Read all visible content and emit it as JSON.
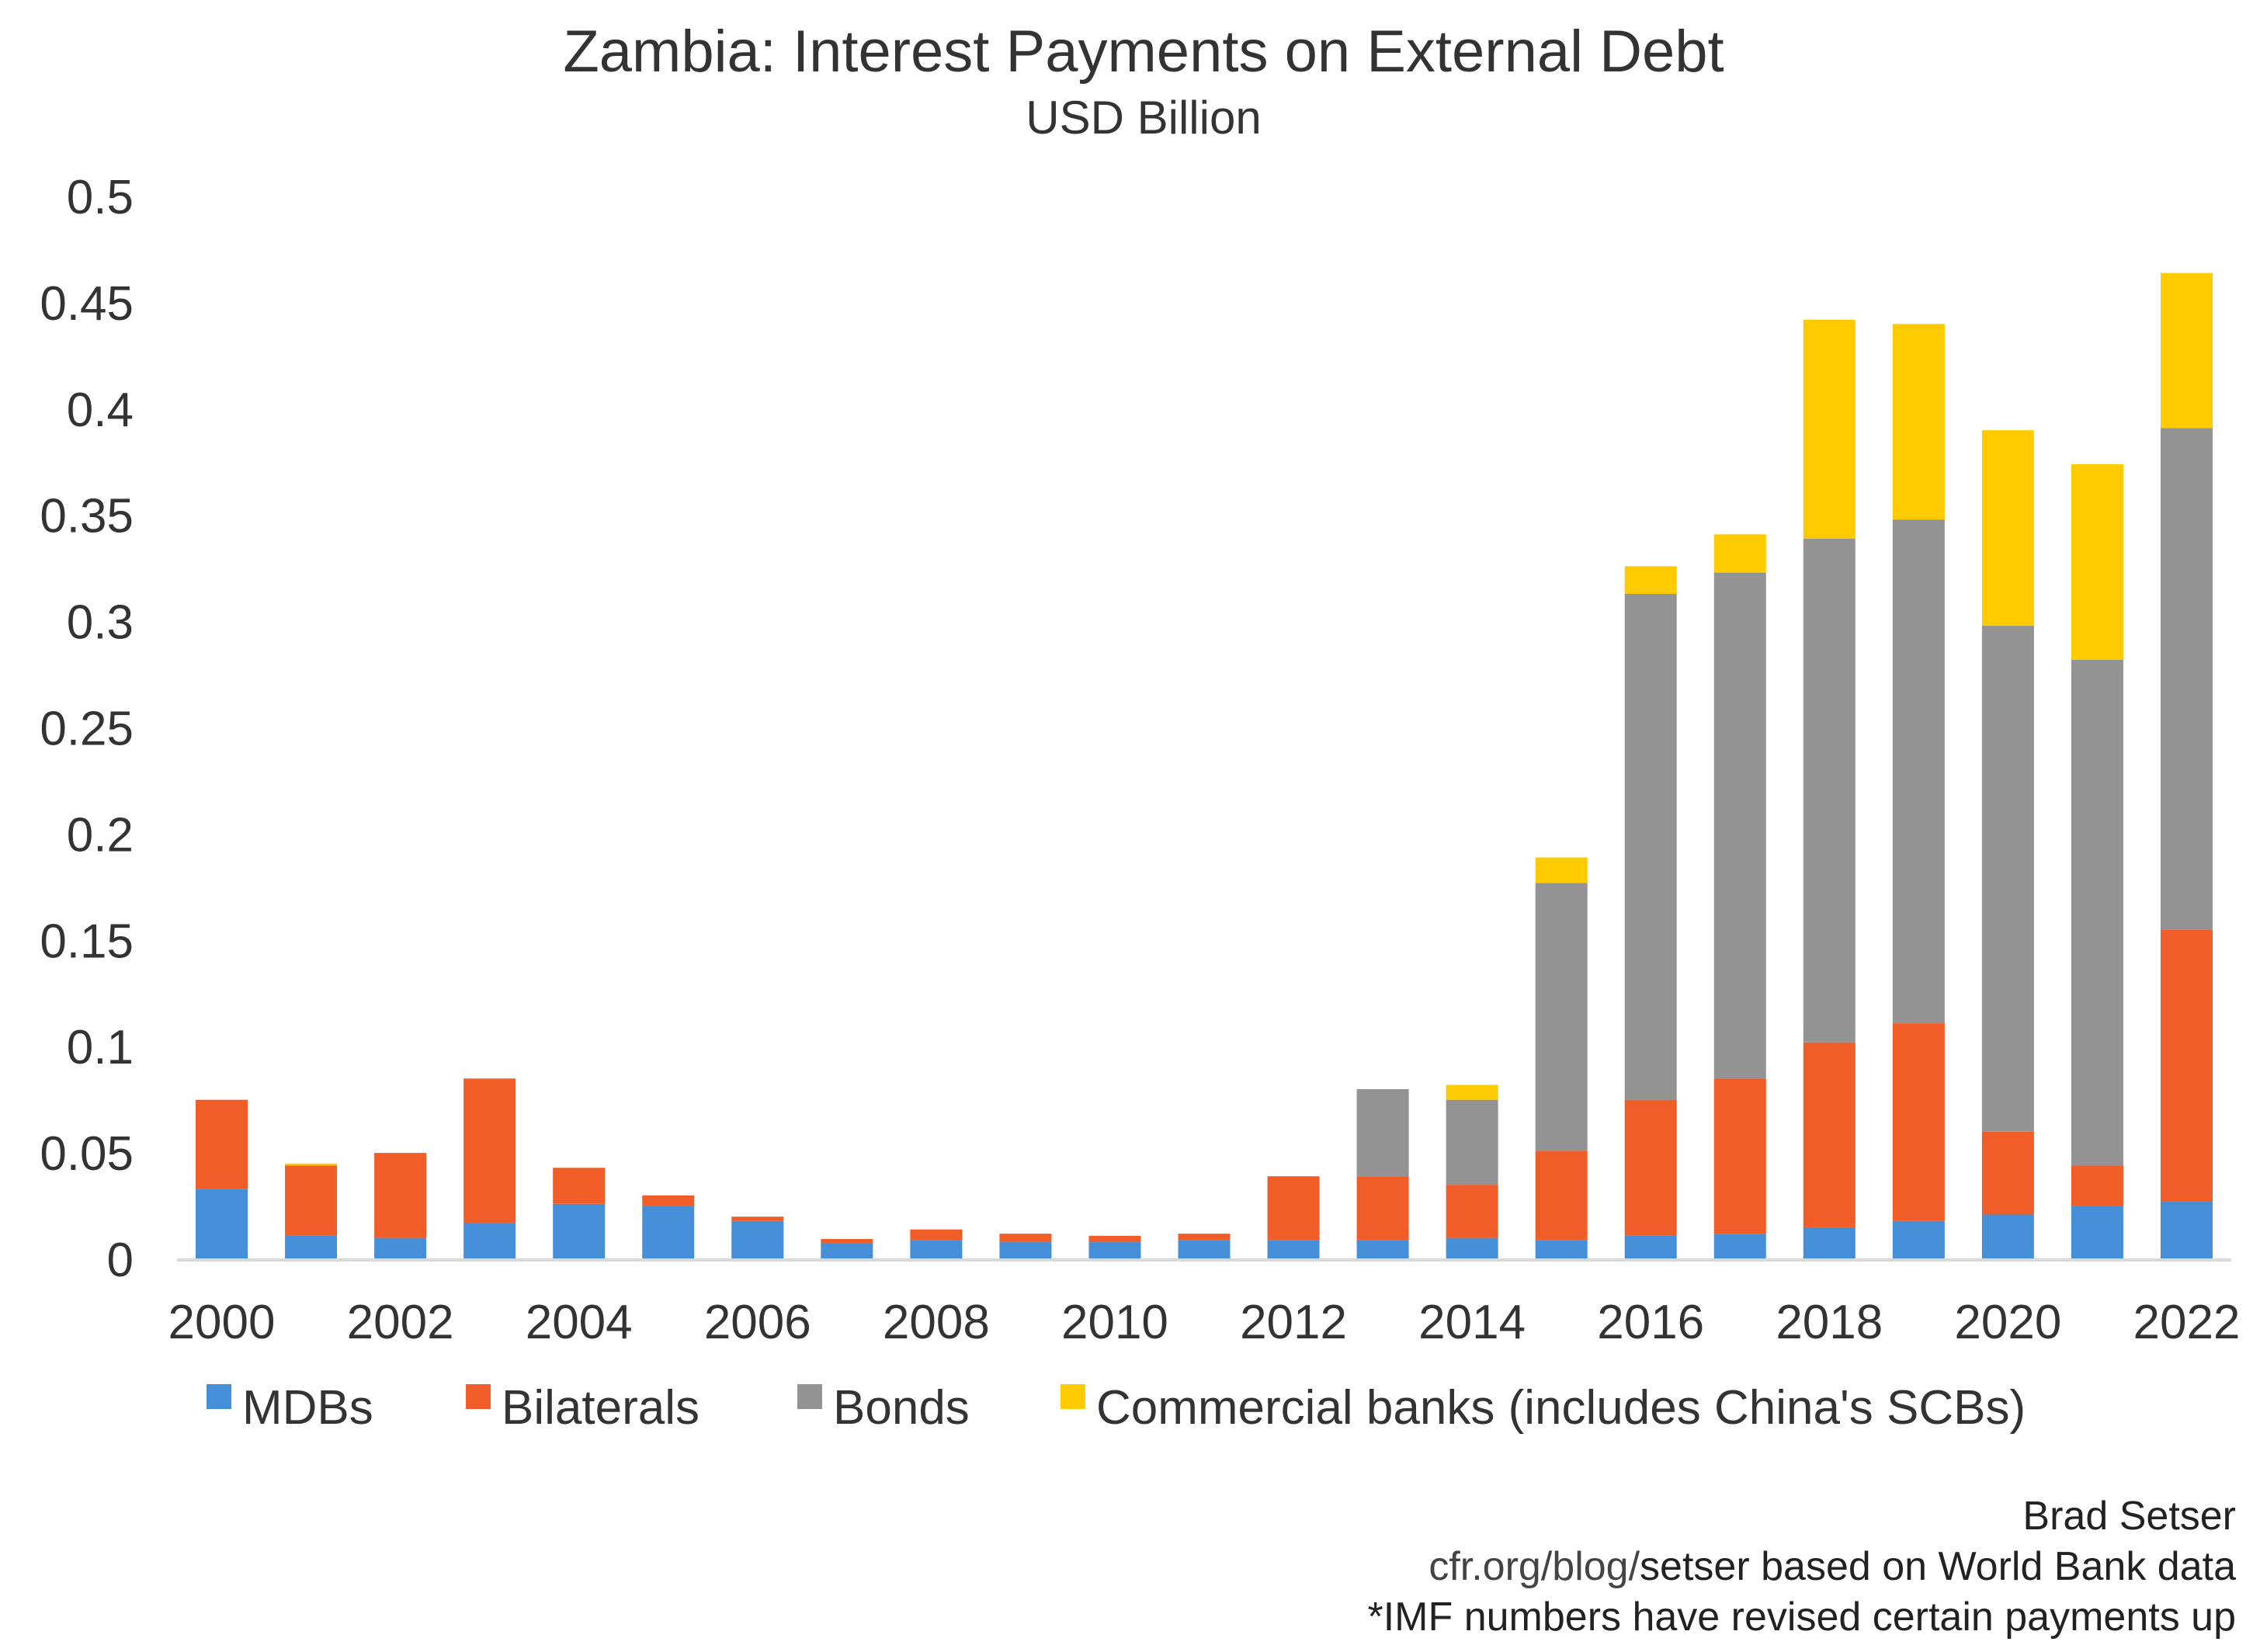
{
  "chart_data": {
    "type": "bar",
    "stacked": true,
    "title": "Zambia: Interest Payments on External Debt",
    "subtitle": "USD Billion",
    "xlabel": "",
    "ylabel": "",
    "ylim": [
      0,
      0.5
    ],
    "yticks": [
      "0",
      "0.05",
      "0.1",
      "0.15",
      "0.2",
      "0.25",
      "0.3",
      "0.35",
      "0.4",
      "0.45",
      "0.5"
    ],
    "grid": false,
    "legend_position": "bottom",
    "categories": [
      "2000",
      "2001",
      "2002",
      "2003",
      "2004",
      "2005",
      "2006",
      "2007",
      "2008",
      "2009",
      "2010",
      "2011",
      "2012",
      "2013",
      "2014",
      "2015",
      "2016",
      "2017",
      "2018",
      "2019",
      "2020",
      "2021",
      "2022"
    ],
    "xtick_labels": [
      "2000",
      "2002",
      "2004",
      "2006",
      "2008",
      "2010",
      "2012",
      "2014",
      "2016",
      "2018",
      "2020",
      "2022"
    ],
    "series": [
      {
        "name": "MDBs",
        "color": "#448FD8",
        "values": [
          0.033,
          0.011,
          0.01,
          0.017,
          0.026,
          0.025,
          0.018,
          0.0075,
          0.009,
          0.008,
          0.008,
          0.009,
          0.009,
          0.009,
          0.01,
          0.009,
          0.011,
          0.012,
          0.015,
          0.018,
          0.021,
          0.025,
          0.027
        ]
      },
      {
        "name": "Bilaterals",
        "color": "#F15D28",
        "values": [
          0.042,
          0.033,
          0.04,
          0.068,
          0.017,
          0.005,
          0.002,
          0.002,
          0.005,
          0.004,
          0.003,
          0.003,
          0.03,
          0.03,
          0.025,
          0.042,
          0.064,
          0.073,
          0.087,
          0.093,
          0.039,
          0.019,
          0.128
        ]
      },
      {
        "name": "Bonds",
        "color": "#939393",
        "values": [
          0,
          0,
          0,
          0,
          0,
          0,
          0,
          0,
          0,
          0,
          0,
          0,
          0,
          0.041,
          0.04,
          0.126,
          0.238,
          0.238,
          0.237,
          0.237,
          0.238,
          0.238,
          0.236
        ]
      },
      {
        "name": "Commercial banks (includes China's SCBs)",
        "color": "#FDCB00",
        "values": [
          0,
          0.001,
          0,
          0,
          0,
          0,
          0,
          0,
          0,
          0,
          0,
          0,
          0,
          0,
          0.007,
          0.012,
          0.013,
          0.018,
          0.103,
          0.092,
          0.092,
          0.092,
          0.073
        ]
      }
    ]
  },
  "footer": {
    "author": "Brad Setser",
    "source_prefix": "cfr.org/blog/",
    "source_rest": "setser based on World Bank data",
    "note": "*IMF numbers have revised certain payments up"
  }
}
